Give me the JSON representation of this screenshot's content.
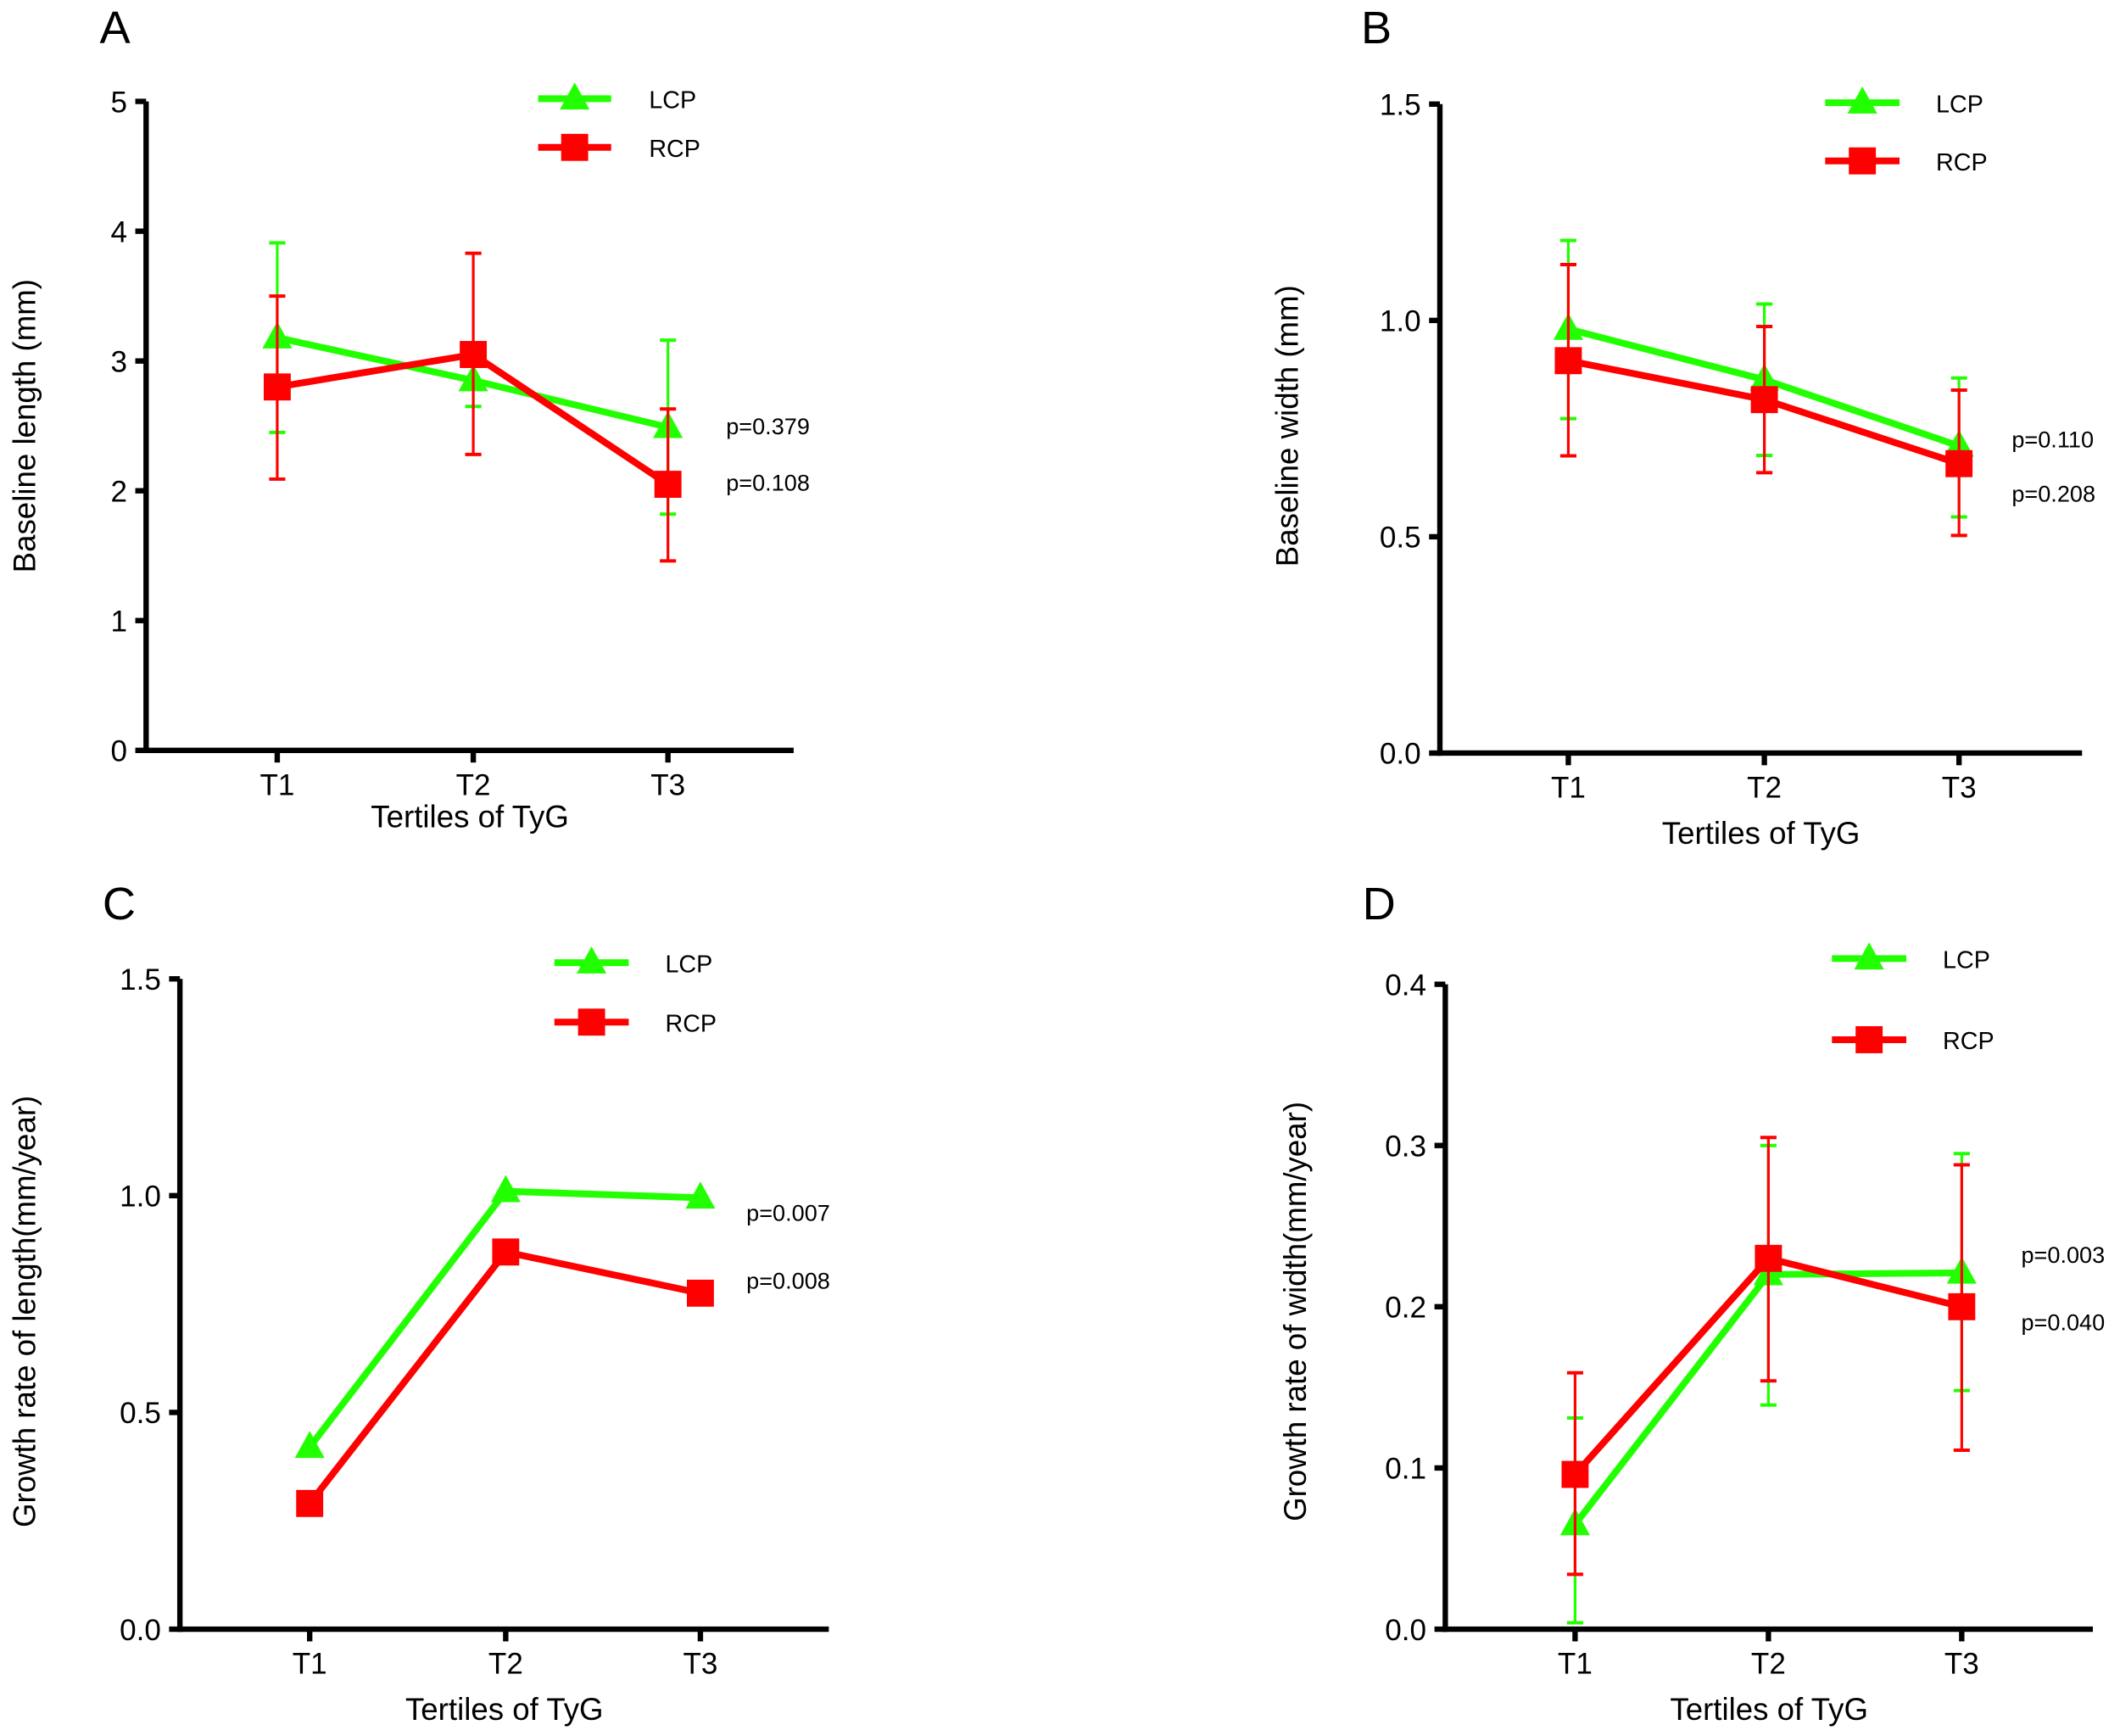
{
  "colors": {
    "LCP": "#22ff00",
    "RCP": "#ff0000",
    "axis": "#000000"
  },
  "chart_data": [
    {
      "panel": "A",
      "type": "line",
      "categories": [
        "T1",
        "T2",
        "T3"
      ],
      "xlabel": "Tertiles of TyG",
      "ylabel": "Baseline length (mm)",
      "ylim": [
        0,
        5
      ],
      "yticks": [
        "0",
        "1",
        "2",
        "3",
        "4",
        "5"
      ],
      "ytick_values": [
        0,
        1,
        2,
        3,
        4,
        5
      ],
      "series": [
        {
          "name": "LCP",
          "marker": "triangle",
          "values": [
            3.18,
            2.85,
            2.49
          ],
          "err_low": [
            2.45,
            2.65,
            1.82
          ],
          "err_high": [
            3.91,
            3.05,
            3.16
          ]
        },
        {
          "name": "RCP",
          "marker": "square",
          "values": [
            2.8,
            3.05,
            2.05
          ],
          "err_low": [
            2.09,
            2.28,
            1.46
          ],
          "err_high": [
            3.5,
            3.83,
            2.63
          ]
        }
      ],
      "annotations": [
        "p=0.379",
        "p=0.108"
      ]
    },
    {
      "panel": "B",
      "type": "line",
      "categories": [
        "T1",
        "T2",
        "T3"
      ],
      "xlabel": "Tertiles of TyG",
      "ylabel": "Baseline width (mm)",
      "ylim": [
        0,
        1.5
      ],
      "yticks": [
        "0.0",
        "0.5",
        "1.0",
        "1.5"
      ],
      "ytick_values": [
        0,
        0.5,
        1.0,
        1.5
      ],
      "series": [
        {
          "name": "LCP",
          "marker": "triangle",
          "values": [
            0.98,
            0.863,
            0.71
          ],
          "err_low": [
            0.773,
            0.688,
            0.546
          ],
          "err_high": [
            1.185,
            1.038,
            0.867
          ]
        },
        {
          "name": "RCP",
          "marker": "square",
          "values": [
            0.907,
            0.817,
            0.669
          ],
          "err_low": [
            0.687,
            0.648,
            0.503
          ],
          "err_high": [
            1.129,
            0.986,
            0.839
          ]
        }
      ],
      "annotations": [
        "p=0.110",
        "p=0.208"
      ]
    },
    {
      "panel": "C",
      "type": "line",
      "categories": [
        "T1",
        "T2",
        "T3"
      ],
      "xlabel": "Tertiles of TyG",
      "ylabel": "Growth rate of length(mm/year)",
      "ylim": [
        0,
        1.5
      ],
      "yticks": [
        "0.0",
        "0.5",
        "1.0",
        "1.5"
      ],
      "ytick_values": [
        0,
        0.5,
        1.0,
        1.5
      ],
      "series": [
        {
          "name": "LCP",
          "marker": "triangle",
          "values": [
            0.42,
            1.01,
            0.995
          ]
        },
        {
          "name": "RCP",
          "marker": "square",
          "values": [
            0.29,
            0.87,
            0.775
          ]
        }
      ],
      "annotations": [
        "p=0.007",
        "p=0.008"
      ]
    },
    {
      "panel": "D",
      "type": "line",
      "categories": [
        "T1",
        "T2",
        "T3"
      ],
      "xlabel": "Tertiles of TyG",
      "ylabel": "Growth rate of  width(mm/year)",
      "ylim": [
        0,
        0.4
      ],
      "yticks": [
        "0.0",
        "0.1",
        "0.2",
        "0.3",
        "0.4"
      ],
      "ytick_values": [
        0,
        0.1,
        0.2,
        0.3,
        0.4
      ],
      "series": [
        {
          "name": "LCP",
          "marker": "triangle",
          "values": [
            0.065,
            0.22,
            0.221
          ],
          "err_low": [
            0.004,
            0.139,
            0.148
          ],
          "err_high": [
            0.131,
            0.3,
            0.295
          ]
        },
        {
          "name": "RCP",
          "marker": "square",
          "values": [
            0.096,
            0.23,
            0.2
          ],
          "err_low": [
            0.034,
            0.154,
            0.111
          ],
          "err_high": [
            0.159,
            0.305,
            0.288
          ]
        }
      ],
      "annotations": [
        "p=0.003",
        "p=0.040"
      ]
    }
  ]
}
